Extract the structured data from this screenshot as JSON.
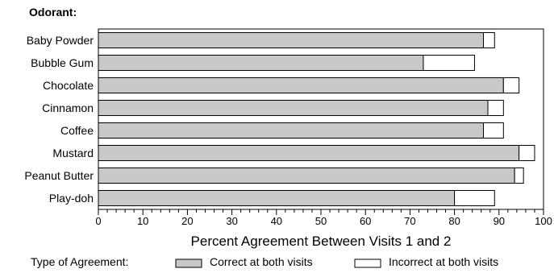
{
  "chart_data": {
    "type": "bar",
    "orientation": "horizontal",
    "stacked": true,
    "ylabel": "Odorant:",
    "xlabel": "Percent Agreement Between Visits 1 and 2",
    "xlim": [
      0,
      100
    ],
    "xticks": [
      0,
      10,
      20,
      30,
      40,
      50,
      60,
      70,
      80,
      90,
      100
    ],
    "categories": [
      "Baby Powder",
      "Bubble Gum",
      "Chocolate",
      "Cinnamon",
      "Coffee",
      "Mustard",
      "Peanut Butter",
      "Play-doh"
    ],
    "series": [
      {
        "name": "Correct at both visits",
        "color": "#c8c8c8",
        "values": [
          86.5,
          73.0,
          91.0,
          87.5,
          86.5,
          94.5,
          93.5,
          80.0
        ]
      },
      {
        "name": "Incorrect at both visits",
        "color": "#ffffff",
        "values": [
          2.5,
          11.5,
          3.5,
          3.5,
          4.5,
          3.5,
          2.0,
          9.0
        ]
      }
    ],
    "legend": {
      "title": "Type of Agreement:",
      "placement": "bottom"
    },
    "grid": false
  }
}
